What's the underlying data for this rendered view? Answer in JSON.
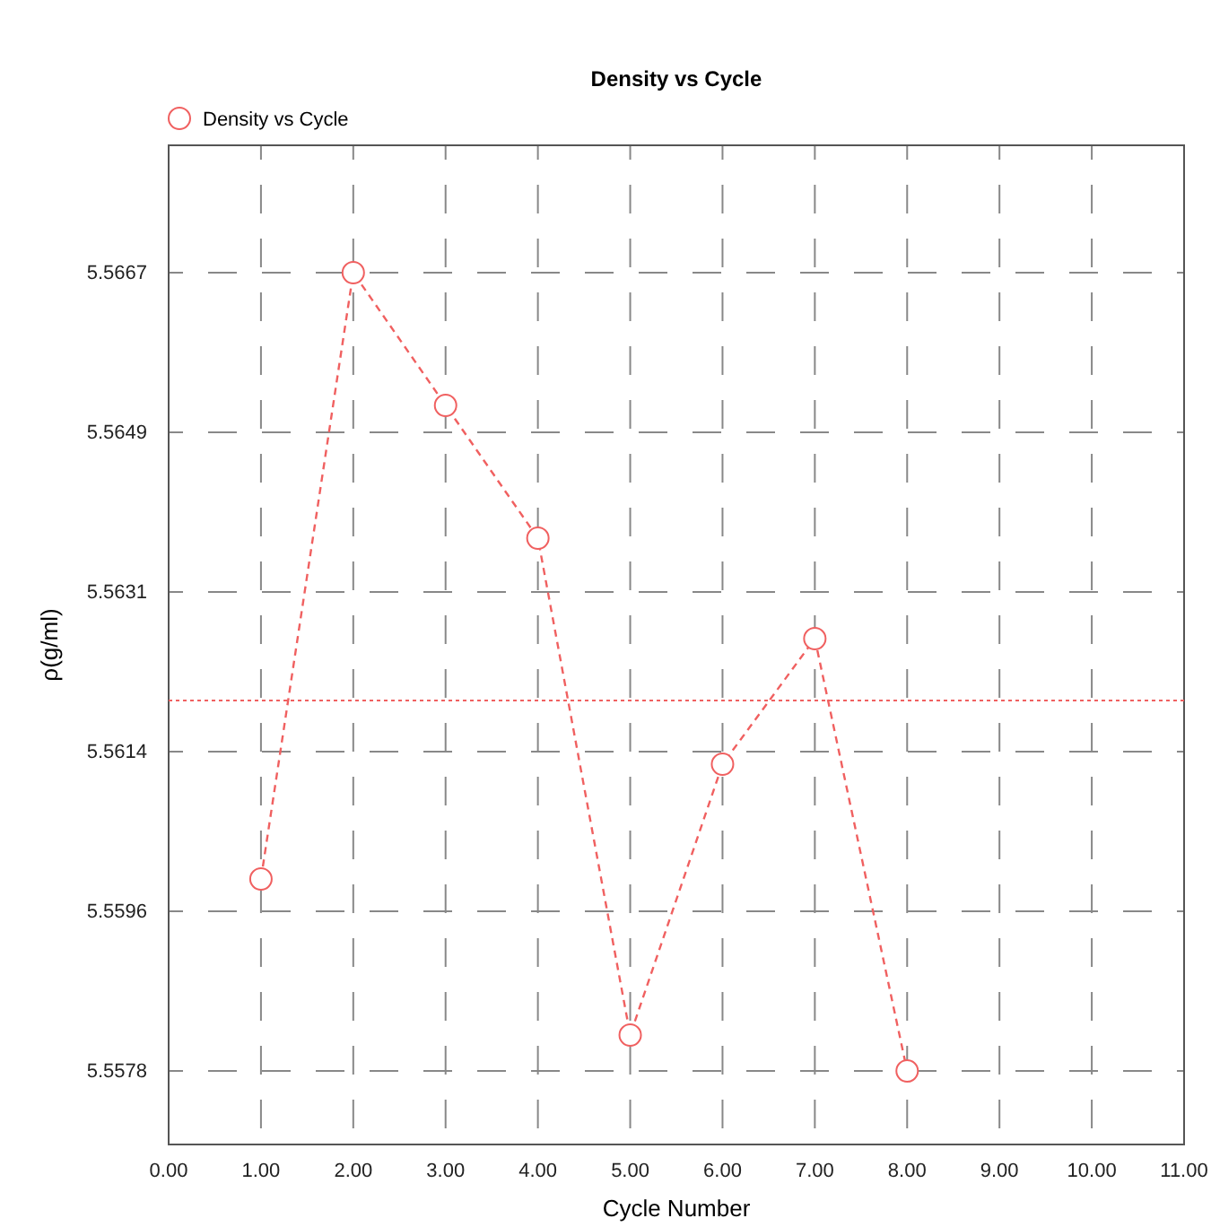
{
  "chart_data": {
    "type": "line",
    "title": "Density vs Cycle",
    "xlabel": "Cycle Number",
    "ylabel": "ρ(g/ml)",
    "x": [
      1,
      2,
      3,
      4,
      5,
      6,
      7,
      8
    ],
    "series": [
      {
        "name": "Density vs Cycle",
        "color": "#f06060",
        "values": [
          5.55994,
          5.5667,
          5.56522,
          5.56374,
          5.5582,
          5.56122,
          5.56262,
          5.5578
        ]
      }
    ],
    "xlim": [
      0,
      11
    ],
    "xticks": [
      {
        "value": 0,
        "label": "0.00"
      },
      {
        "value": 1,
        "label": "1.00"
      },
      {
        "value": 2,
        "label": "2.00"
      },
      {
        "value": 3,
        "label": "3.00"
      },
      {
        "value": 4,
        "label": "4.00"
      },
      {
        "value": 5,
        "label": "5.00"
      },
      {
        "value": 6,
        "label": "6.00"
      },
      {
        "value": 7,
        "label": "7.00"
      },
      {
        "value": 8,
        "label": "8.00"
      },
      {
        "value": 9,
        "label": "9.00"
      },
      {
        "value": 10,
        "label": "10.00"
      },
      {
        "value": 11,
        "label": "11.00"
      }
    ],
    "ylim": [
      5.55698,
      5.56812
    ],
    "yticks": [
      5.5578,
      {
        "value": 5.55958,
        "label": "5.5596"
      },
      {
        "value": 5.56136,
        "label": "5.5614"
      },
      {
        "value": 5.56314,
        "label": "5.5631"
      },
      {
        "value": 5.56492,
        "label": "5.5649"
      },
      5.5667
    ],
    "ref_lines": [
      {
        "axis": "y",
        "value": 5.56193,
        "color": "#f06060",
        "line_style": "dotted"
      }
    ],
    "grid": true,
    "legend": "top left",
    "marker": "circle",
    "line_style": "dashed"
  }
}
